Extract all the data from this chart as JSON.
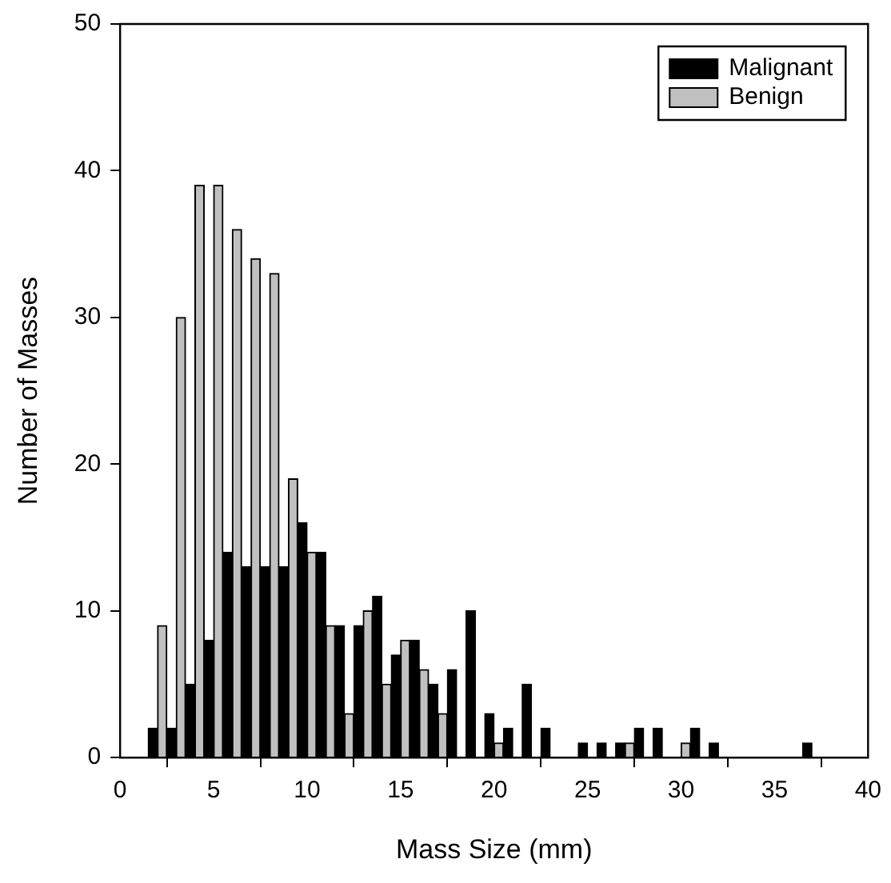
{
  "chart_data": {
    "type": "bar",
    "xlabel": "Mass Size (mm)",
    "ylabel": "Number of Masses",
    "x": [
      2,
      3,
      4,
      5,
      6,
      7,
      8,
      9,
      10,
      11,
      12,
      13,
      14,
      15,
      16,
      17,
      18,
      19,
      20,
      21,
      22,
      23,
      24,
      25,
      26,
      27,
      28,
      29,
      30,
      31,
      32,
      33,
      34,
      35,
      36,
      37
    ],
    "series": [
      {
        "name": "Malignant",
        "color": "#000000",
        "values": [
          2,
          2,
          5,
          8,
          14,
          13,
          13,
          13,
          16,
          14,
          9,
          9,
          11,
          7,
          8,
          5,
          6,
          10,
          3,
          2,
          5,
          2,
          null,
          1,
          1,
          1,
          2,
          2,
          null,
          2,
          1,
          null,
          null,
          null,
          null,
          1
        ]
      },
      {
        "name": "Benign",
        "color": "#c0c0c0",
        "values": [
          9,
          30,
          39,
          39,
          36,
          34,
          33,
          19,
          14,
          9,
          3,
          10,
          5,
          8,
          6,
          3,
          null,
          null,
          1,
          null,
          null,
          null,
          null,
          null,
          null,
          1,
          null,
          null,
          1,
          null,
          null,
          null,
          null,
          null,
          null,
          null
        ]
      }
    ],
    "xlim": [
      0,
      40
    ],
    "xticks": [
      0,
      5,
      10,
      15,
      20,
      25,
      30,
      35,
      40
    ],
    "ylim": [
      0,
      50
    ],
    "yticks": [
      0,
      10,
      20,
      30,
      40,
      50
    ],
    "grid": false,
    "legend": "top right"
  }
}
